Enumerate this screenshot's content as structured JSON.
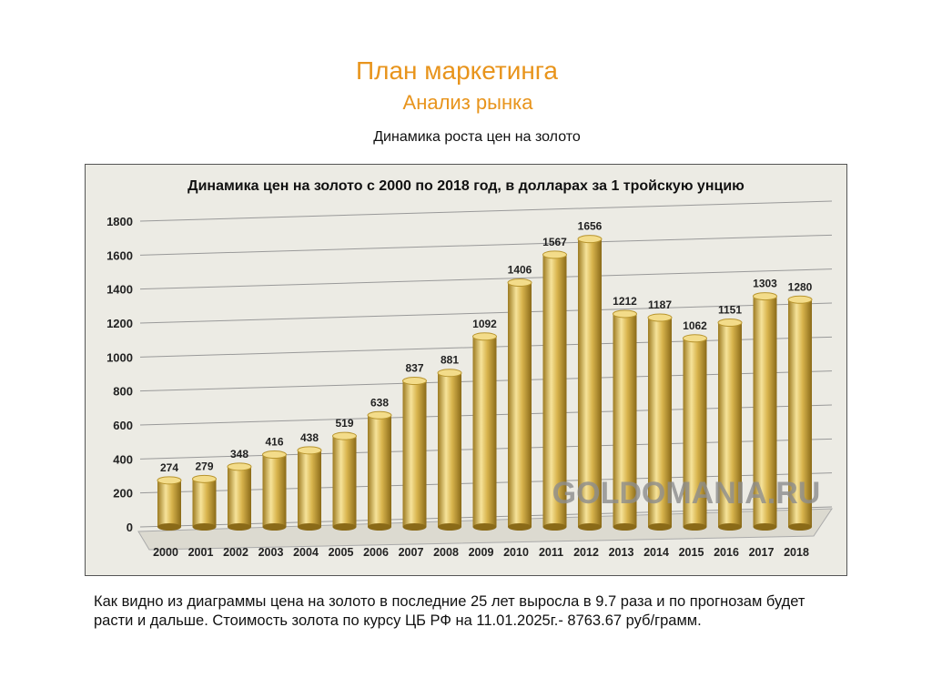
{
  "slide": {
    "title": "План маркетинга",
    "subtitle": "Анализ рынка",
    "chart_caption": "Динамика роста цен на золото",
    "note": "Как видно из диаграммы цена на золото в последние 25 лет выросла в 9.7 раза и по прогнозам будет расти и дальше.  Стоимость  золота по курсу ЦБ РФ на 11.01.2025г.- 8763.67 руб/грамм."
  },
  "chart_data": {
    "type": "bar",
    "title": "Динамика цен на золото с 2000 по 2018 год, в долларах за 1 тройскую унцию",
    "categories": [
      "2000",
      "2001",
      "2002",
      "2003",
      "2004",
      "2005",
      "2006",
      "2007",
      "2008",
      "2009",
      "2010",
      "2011",
      "2012",
      "2013",
      "2014",
      "2015",
      "2016",
      "2017",
      "2018"
    ],
    "values": [
      274,
      279,
      348,
      416,
      438,
      519,
      638,
      837,
      881,
      1092,
      1406,
      1567,
      1656,
      1212,
      1187,
      1062,
      1151,
      1303,
      1280
    ],
    "ylim": [
      0,
      1800
    ],
    "yticks": [
      0,
      200,
      400,
      600,
      800,
      1000,
      1200,
      1400,
      1600,
      1800
    ],
    "grid": true,
    "watermark": "GOLDOMANIA.RU",
    "bar_color": "#d4b04a"
  }
}
